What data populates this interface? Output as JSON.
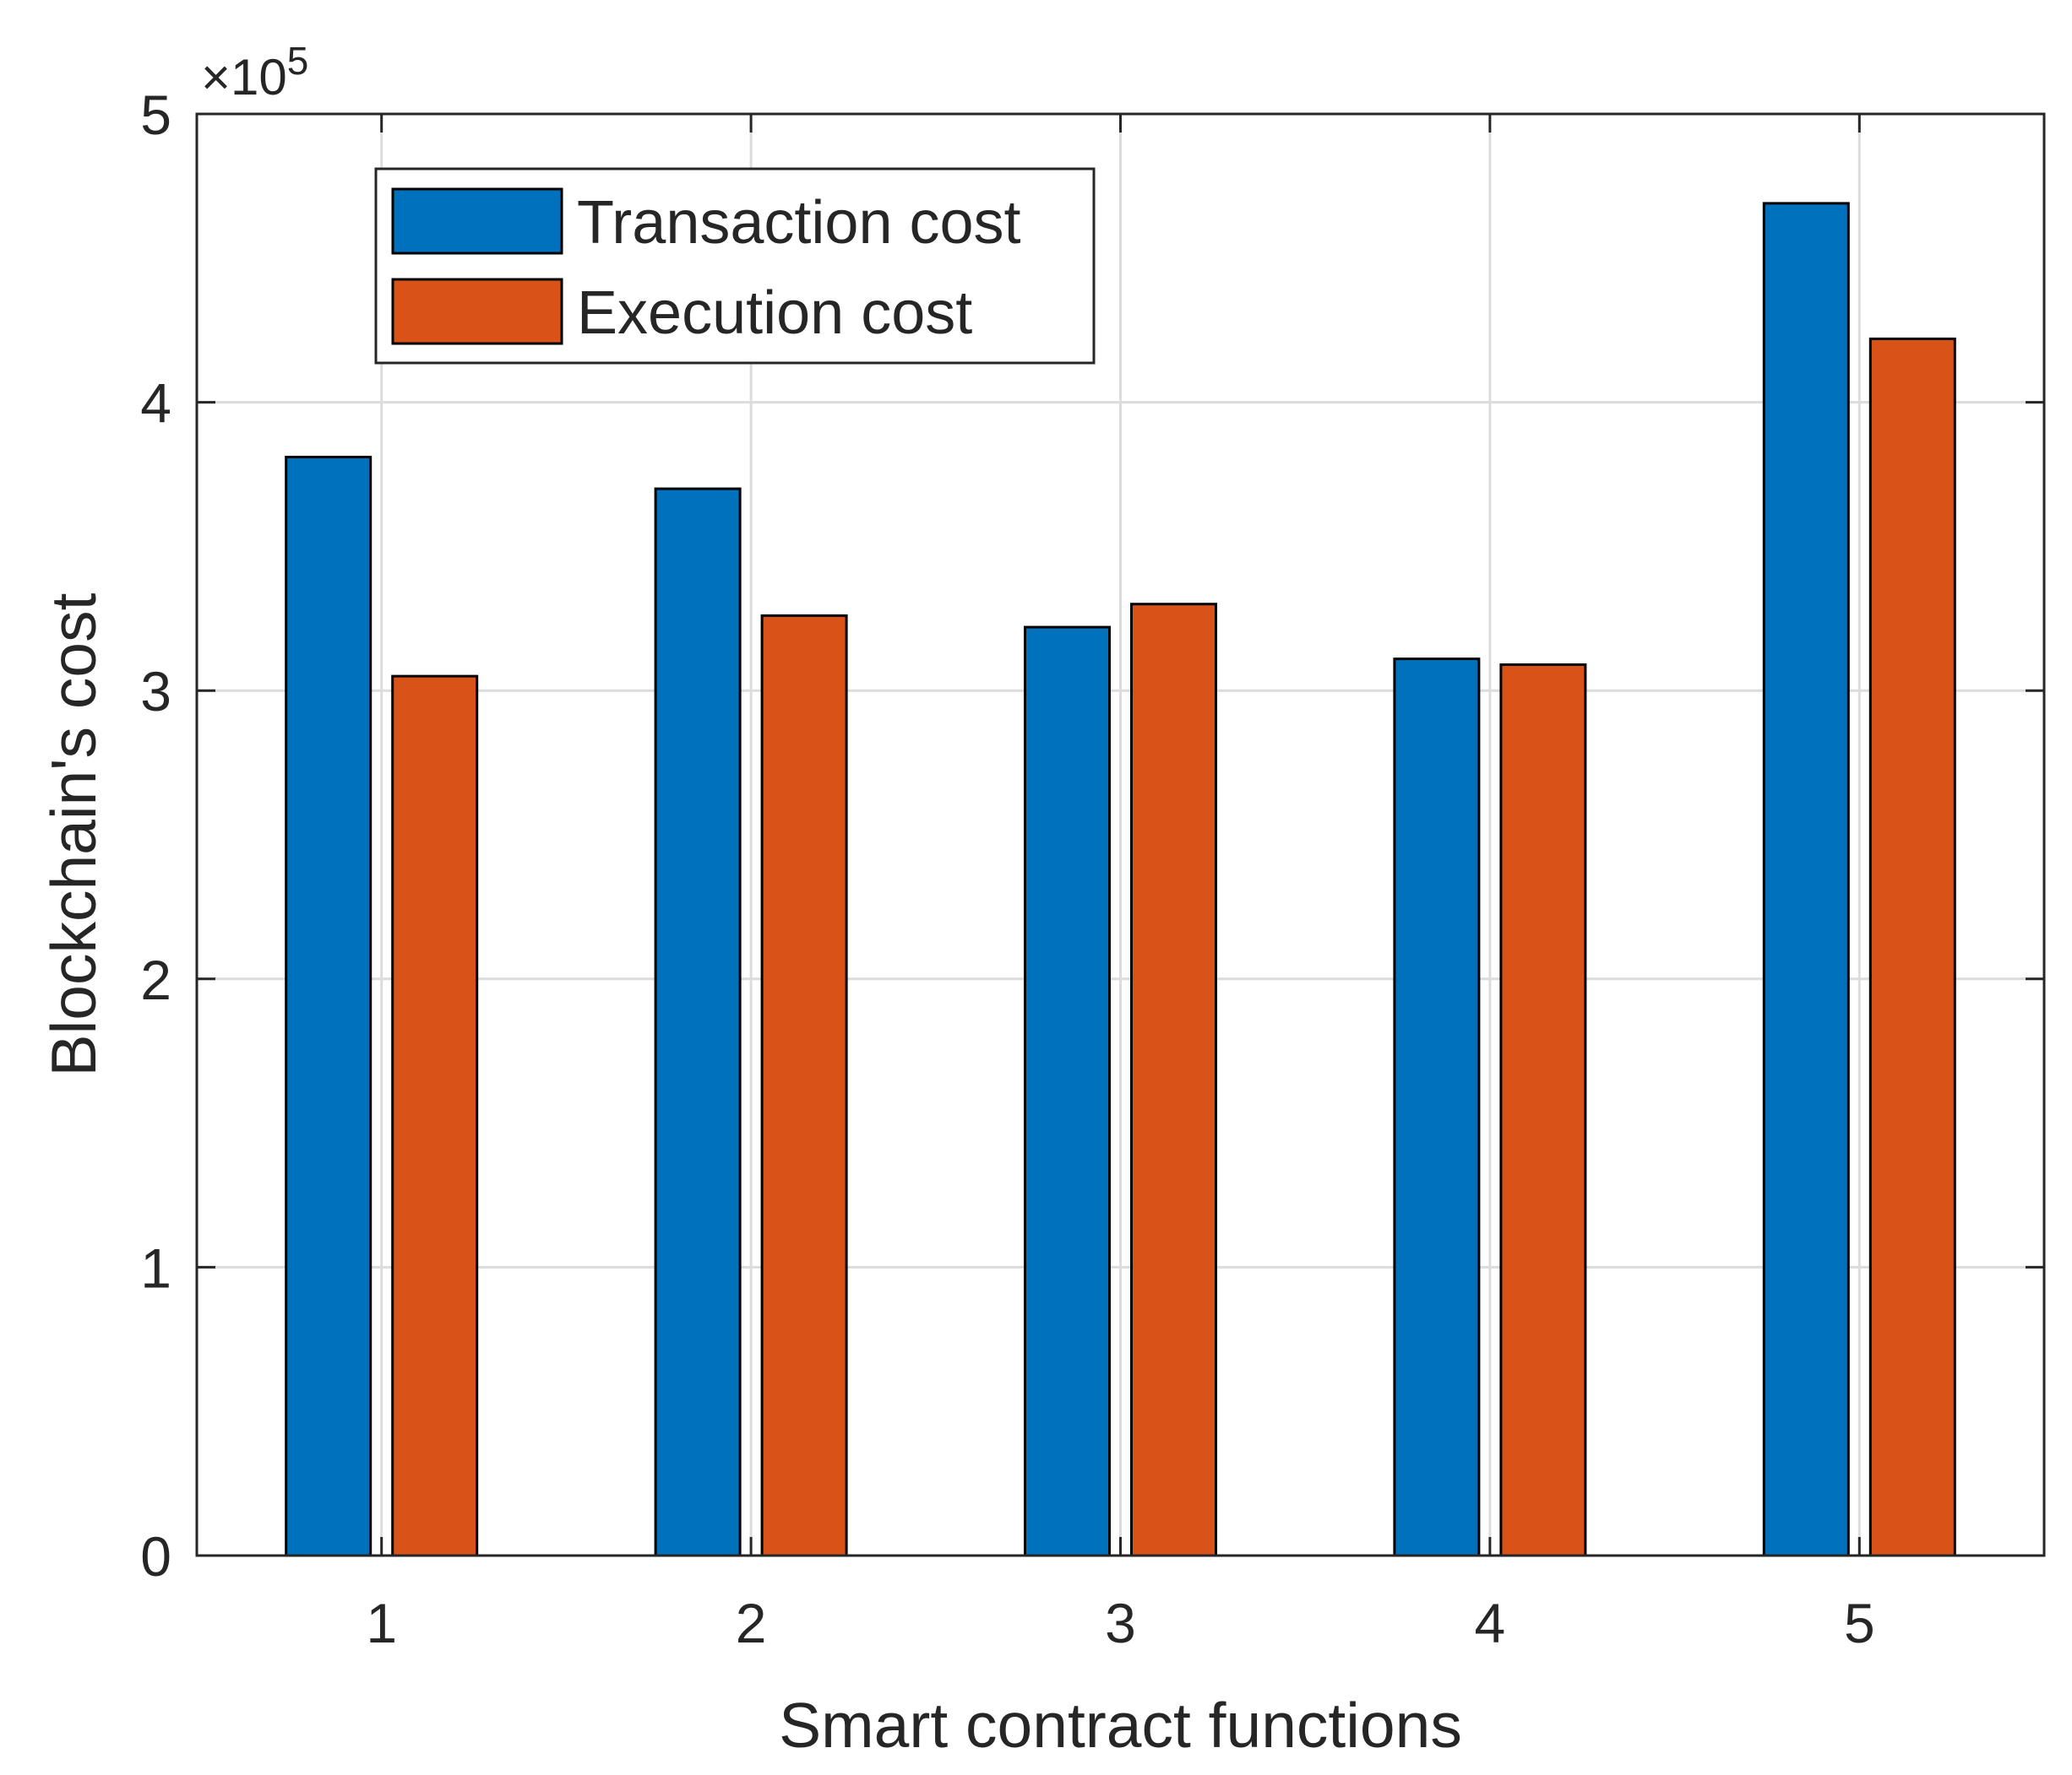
{
  "chart_data": {
    "type": "bar",
    "title": "",
    "xlabel": "Smart contract functions",
    "ylabel": "Blockchain's cost",
    "categories": [
      "1",
      "2",
      "3",
      "4",
      "5"
    ],
    "series": [
      {
        "name": "Transaction cost",
        "color": "#0072BD",
        "values": [
          381000,
          370000,
          322000,
          311000,
          469000
        ]
      },
      {
        "name": "Execution cost",
        "color": "#D95319",
        "values": [
          305000,
          326000,
          330000,
          309000,
          422000
        ]
      }
    ],
    "ylim": [
      0,
      500000
    ],
    "yticks": [
      0,
      100000,
      200000,
      300000,
      400000,
      500000
    ],
    "ytick_labels": [
      "0",
      "1",
      "2",
      "3",
      "4",
      "5"
    ],
    "exponent_label": {
      "times": "×10",
      "power": "5"
    },
    "grid": true,
    "legend_position": "top-left"
  }
}
